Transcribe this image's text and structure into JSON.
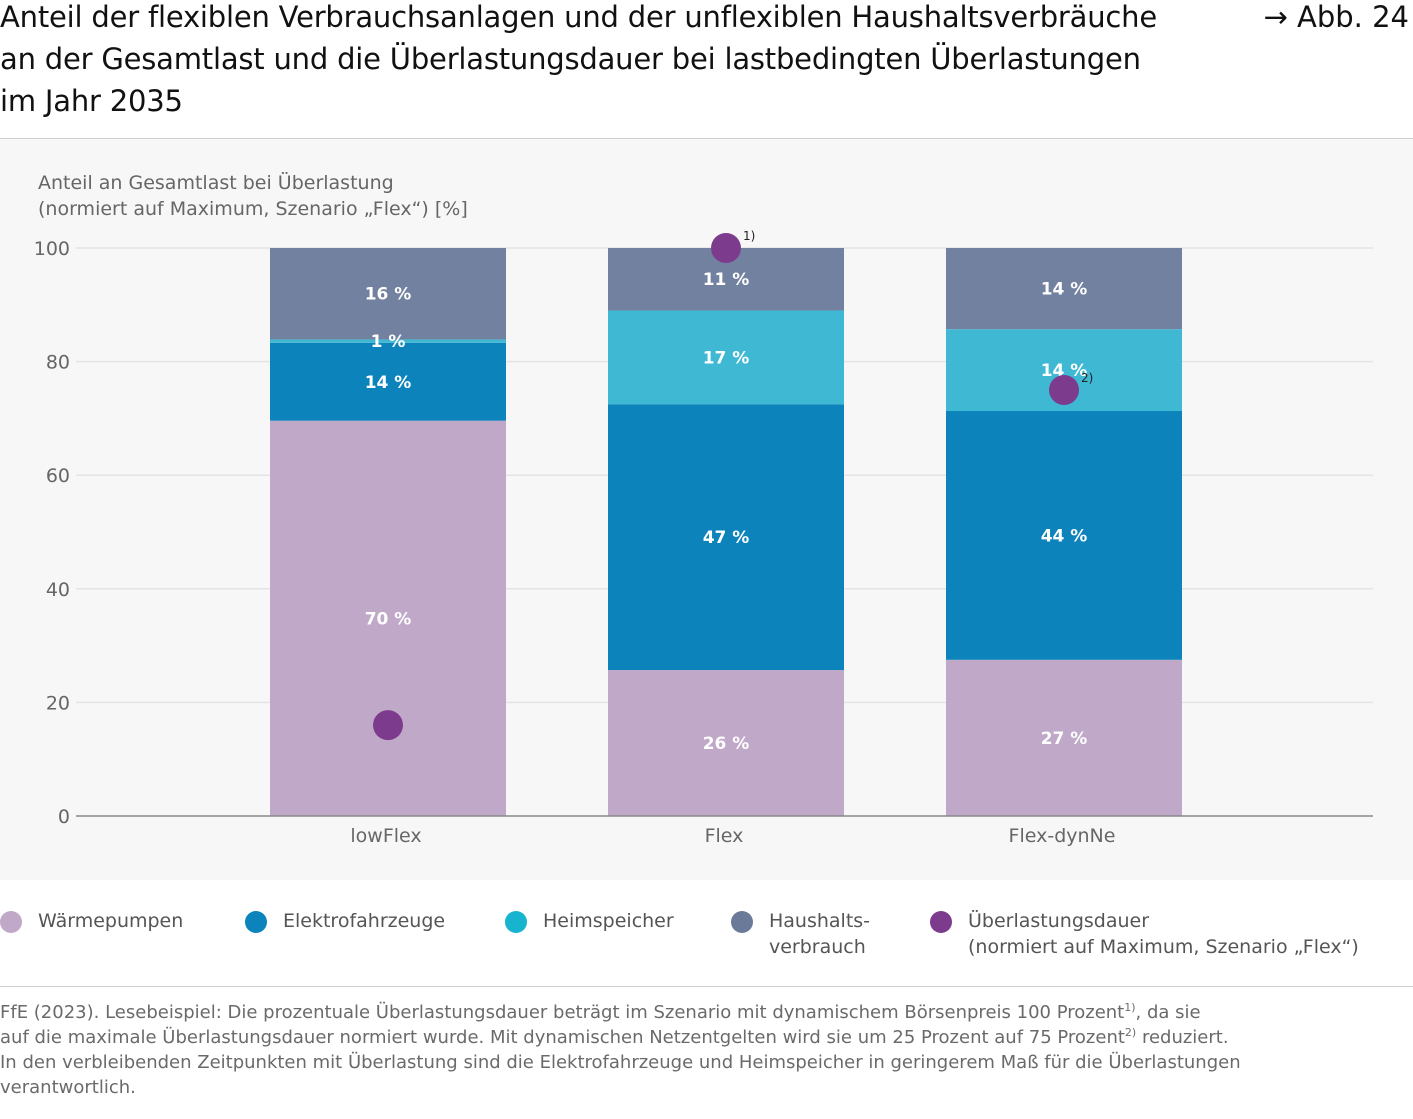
{
  "header": {
    "title": "Anteil der flexiblen Verbrauchsanlagen und der unflexiblen Haushaltsverbräuche\nan der Gesamtlast und die Überlastungsdauer bei lastbedingten Überlastungen\nim Jahr 2035",
    "figure_ref": "→ Abb. 24"
  },
  "colors": {
    "waermepumpen": "#c0a8c8",
    "elektrofahrzeuge": "#0c83bb",
    "heimspeicher": "#3fb8d4",
    "haushalt": "#71819f",
    "ueberlastung": "#7d3b8e"
  },
  "chart_data": {
    "type": "bar",
    "stacked": true,
    "ylabel_line1": "Anteil an Gesamtlast bei Überlastung",
    "ylabel_line2": "(normiert auf Maximum, Szenario „Flex“) [%]",
    "ylim": [
      0,
      100
    ],
    "yticks": [
      0,
      20,
      40,
      60,
      80,
      100
    ],
    "categories": [
      "lowFlex",
      "Flex",
      "Flex-dynNe"
    ],
    "series": [
      {
        "key": "waermepumpen",
        "name": "Wärmepumpen",
        "values": [
          69.6,
          25.7,
          27.5
        ],
        "labels": [
          "70 %",
          "26 %",
          "27 %"
        ]
      },
      {
        "key": "elektrofahrzeuge",
        "name": "Elektrofahrzeuge",
        "values": [
          13.7,
          46.8,
          43.8
        ],
        "labels": [
          "14 %",
          "47 %",
          "44 %"
        ]
      },
      {
        "key": "heimspeicher",
        "name": "Heimspeicher",
        "values": [
          0.6,
          16.5,
          14.4
        ],
        "labels": [
          "1 %",
          "17 %",
          "14 %"
        ]
      },
      {
        "key": "haushalt",
        "name": "Haushalts-\nverbrauch",
        "values": [
          16.1,
          11.0,
          14.3
        ],
        "labels": [
          "16 %",
          "11 %",
          "14 %"
        ]
      }
    ],
    "overlay": {
      "key": "ueberlastung",
      "name": "Überlastungsdauer\n(normiert auf Maximum, Szenario „Flex“)",
      "values": [
        16,
        100,
        75
      ],
      "footnote_marks": [
        "",
        "1)",
        "2)"
      ]
    }
  },
  "source": {
    "line1_a": "FfE (2023). Lesebeispiel: Die prozentuale Überlastungsdauer beträgt im Szenario mit dynamischem Börsenpreis 100 Prozent",
    "mark1": "1)",
    "line1_b": ", da sie",
    "line2_a": "auf die maximale Überlastungsdauer normiert wurde. Mit dynamischen Netzentgelten wird sie um 25 Prozent auf 75 Prozent",
    "mark2": "2)",
    "line2_b": " reduziert.",
    "line3": "In den verbleibenden Zeitpunkten mit Überlastung sind die Elektrofahrzeuge und Heimspeicher in geringerem Maß für die Überlastungen verantwortlich."
  }
}
